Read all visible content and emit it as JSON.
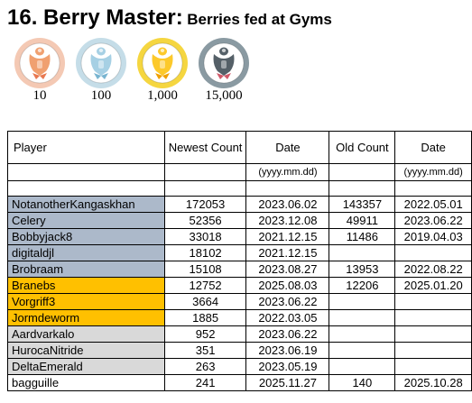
{
  "title": {
    "main": "16. Berry Master:",
    "sub": "Berries fed at Gyms"
  },
  "medals": [
    {
      "tier": "bronze",
      "label": "10",
      "rim": "#f4c9b4",
      "fill": "#ffffff",
      "figure": "#f0a070",
      "accent": "#e87850"
    },
    {
      "tier": "silver",
      "label": "100",
      "rim": "#c5dde8",
      "fill": "#ffffff",
      "figure": "#a6d0e4",
      "accent": "#78b4d0"
    },
    {
      "tier": "gold",
      "label": "1,000",
      "rim": "#f5d640",
      "fill": "#ffffff",
      "figure": "#fcc92b",
      "accent": "#f0a000"
    },
    {
      "tier": "platinum",
      "label": "15,000",
      "rim": "#8a9aa2",
      "fill": "#ffffff",
      "figure": "#556068",
      "accent": "#d05868"
    }
  ],
  "table": {
    "headers": {
      "player": "Player",
      "newest_count": "Newest Count",
      "date": "Date",
      "old_count": "Old Count",
      "old_date": "Date"
    },
    "date_format": "(yyyy.mm.dd)",
    "colors": {
      "blue": "#acb9ca",
      "gold": "#ffc000",
      "grey": "#d9d9d9",
      "none": "#ffffff"
    },
    "rows": [
      {
        "player": "NotanotherKangaskhan",
        "newest": "172053",
        "date": "2023.06.02",
        "old": "143357",
        "old_date": "2022.05.01",
        "tier": "blue"
      },
      {
        "player": "Celery",
        "newest": "52356",
        "date": "2023.12.08",
        "old": "49911",
        "old_date": "2023.06.22",
        "tier": "blue"
      },
      {
        "player": "Bobbyjack8",
        "newest": "33018",
        "date": "2021.12.15",
        "old": "11486",
        "old_date": "2019.04.03",
        "tier": "blue"
      },
      {
        "player": "digitaldjl",
        "newest": "18102",
        "date": "2021.12.15",
        "old": "",
        "old_date": "",
        "tier": "blue"
      },
      {
        "player": "Brobraam",
        "newest": "15108",
        "date": "2023.08.27",
        "old": "13953",
        "old_date": "2022.08.22",
        "tier": "blue"
      },
      {
        "player": "Branebs",
        "newest": "12752",
        "date": "2025.08.03",
        "old": "12206",
        "old_date": "2025.01.20",
        "tier": "gold"
      },
      {
        "player": "Vorgriff3",
        "newest": "3664",
        "date": "2023.06.22",
        "old": "",
        "old_date": "",
        "tier": "gold"
      },
      {
        "player": "Jormdeworm",
        "newest": "1885",
        "date": "2022.03.05",
        "old": "",
        "old_date": "",
        "tier": "gold"
      },
      {
        "player": "Aardvarkalo",
        "newest": "952",
        "date": "2023.06.22",
        "old": "",
        "old_date": "",
        "tier": "grey"
      },
      {
        "player": "HurocaNitride",
        "newest": "351",
        "date": "2023.06.19",
        "old": "",
        "old_date": "",
        "tier": "grey"
      },
      {
        "player": "DeltaEmerald",
        "newest": "263",
        "date": "2023.05.19",
        "old": "",
        "old_date": "",
        "tier": "grey"
      },
      {
        "player": "bagguille",
        "newest": "241",
        "date": "2025.11.27",
        "old": "140",
        "old_date": "2025.10.28",
        "tier": "none"
      }
    ]
  }
}
